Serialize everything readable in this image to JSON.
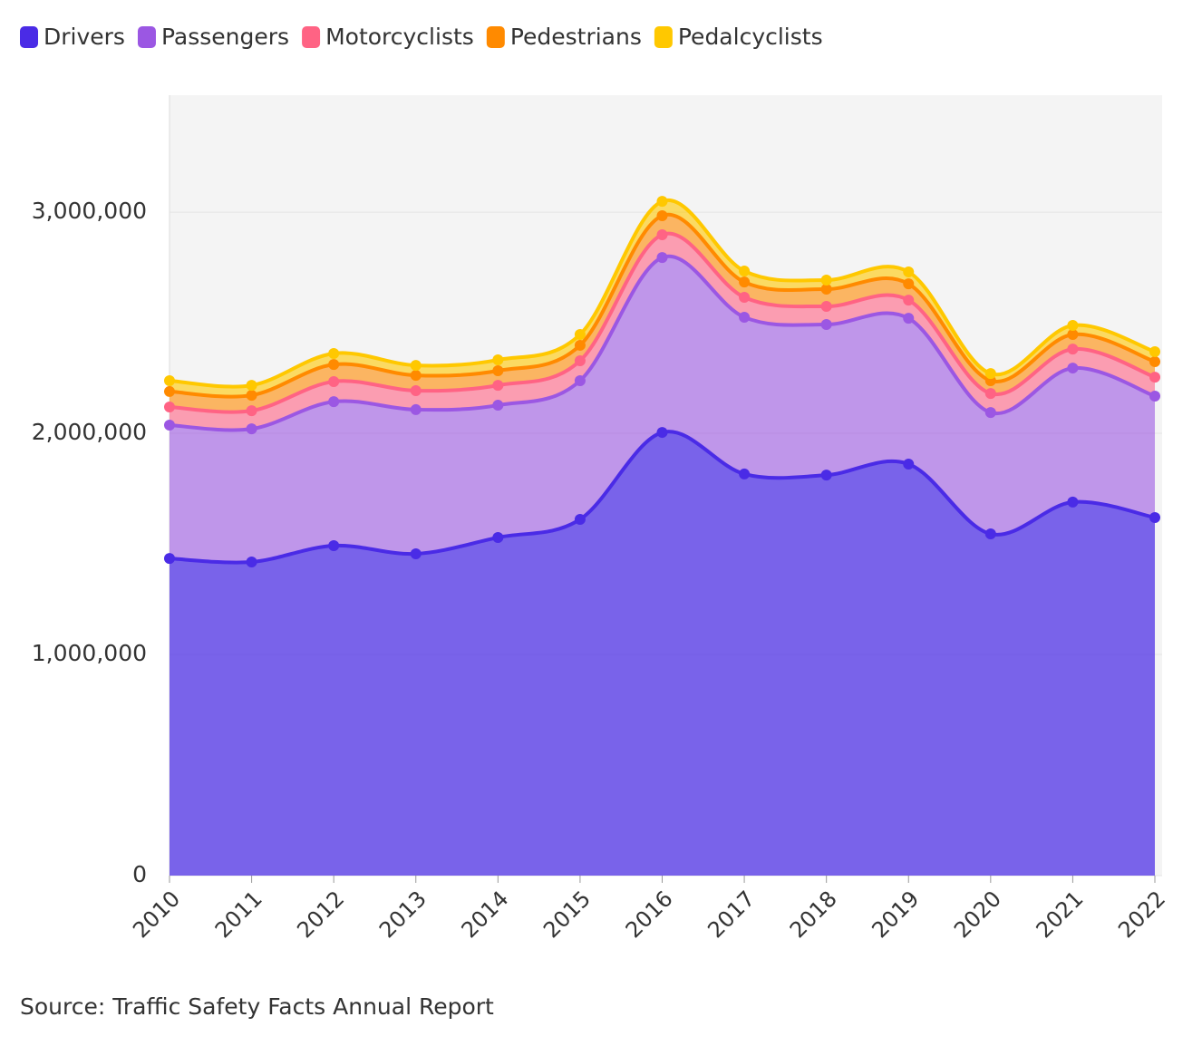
{
  "chart_data": {
    "type": "stacked_area",
    "categories": [
      "2010",
      "2011",
      "2012",
      "2013",
      "2014",
      "2015",
      "2016",
      "2017",
      "2018",
      "2019",
      "2020",
      "2021",
      "2022"
    ],
    "series": [
      {
        "name": "Drivers",
        "color": "#4a2be6",
        "values": [
          1434000,
          1418000,
          1492000,
          1455000,
          1529000,
          1611000,
          2004000,
          1816000,
          1811000,
          1861000,
          1545000,
          1689000,
          1619000
        ]
      },
      {
        "name": "Passengers",
        "color": "#9b57e3",
        "values": [
          603000,
          602000,
          651000,
          652000,
          598000,
          627000,
          791000,
          709000,
          681000,
          659000,
          549000,
          606000,
          549000
        ]
      },
      {
        "name": "Motorcyclists",
        "color": "#ff6384",
        "values": [
          82000,
          82000,
          91000,
          86000,
          90000,
          90000,
          103000,
          90000,
          82000,
          82000,
          86000,
          86000,
          86000
        ]
      },
      {
        "name": "Pedestrians",
        "color": "#ff8a00",
        "values": [
          70000,
          70000,
          77000,
          69000,
          66000,
          70000,
          86000,
          69000,
          78000,
          74000,
          58000,
          66000,
          70000
        ]
      },
      {
        "name": "Pedalcyclists",
        "color": "#ffc800",
        "values": [
          49000,
          45000,
          50000,
          45000,
          49000,
          49000,
          65000,
          50000,
          41000,
          54000,
          32000,
          41000,
          45000
        ]
      }
    ],
    "ylim": [
      0,
      3529000
    ],
    "yticks": [
      0,
      {
        "value": 1000000,
        "label": "1,000,000"
      },
      {
        "value": 2000000,
        "label": "2,000,000"
      },
      {
        "value": 3000000,
        "label": "3,000,000"
      }
    ],
    "grid": true,
    "legend": "top",
    "source": "Source: Traffic Safety Facts Annual Report"
  }
}
